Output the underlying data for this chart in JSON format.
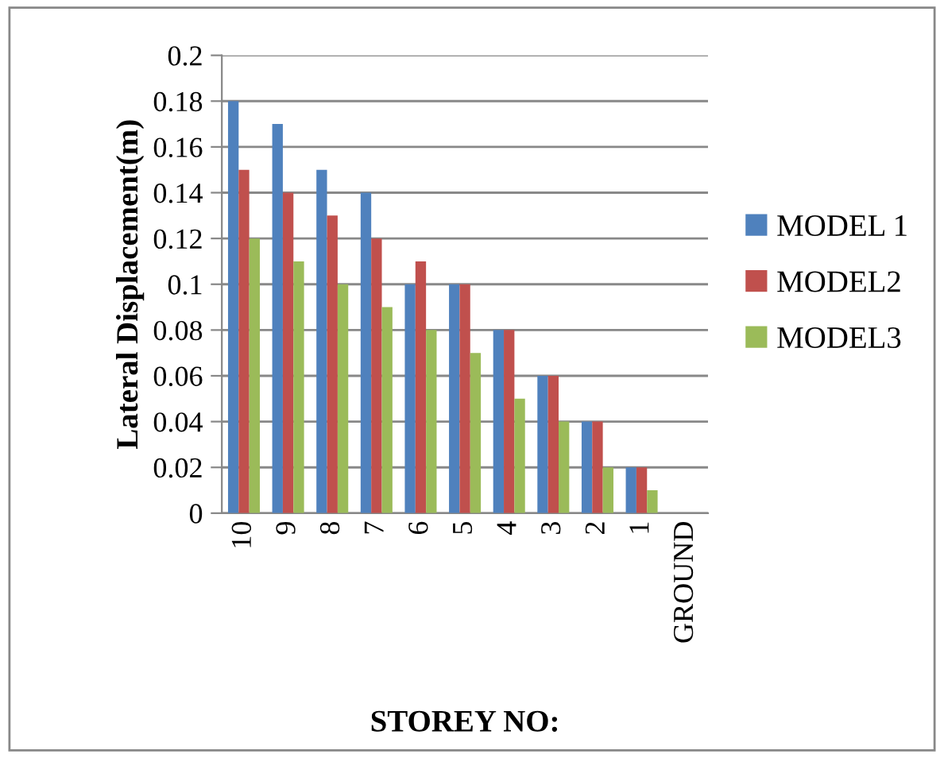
{
  "chart_data": {
    "type": "bar",
    "xlabel": "STOREY NO:",
    "ylabel": "Lateral Displacement(m)",
    "categories": [
      "10",
      "9",
      "8",
      "7",
      "6",
      "5",
      "4",
      "3",
      "2",
      "1",
      "GROUND"
    ],
    "series": [
      {
        "name": "MODEL 1",
        "color": "#4f81bd",
        "values": [
          0.18,
          0.17,
          0.15,
          0.14,
          0.1,
          0.1,
          0.08,
          0.06,
          0.04,
          0.02,
          null
        ]
      },
      {
        "name": "MODEL2",
        "color": "#c0504d",
        "values": [
          0.15,
          0.14,
          0.13,
          0.12,
          0.11,
          0.1,
          0.08,
          0.06,
          0.04,
          0.02,
          null
        ]
      },
      {
        "name": "MODEL3",
        "color": "#9bbb59",
        "values": [
          0.12,
          0.11,
          0.1,
          0.09,
          0.08,
          0.07,
          0.05,
          0.04,
          0.02,
          0.01,
          null
        ]
      }
    ],
    "ylim": [
      0,
      0.2
    ],
    "yticks": [
      0,
      0.02,
      0.04,
      0.06,
      0.08,
      0.1,
      0.12,
      0.14,
      0.16,
      0.18,
      0.2
    ],
    "grid": "y",
    "legend": "right"
  }
}
